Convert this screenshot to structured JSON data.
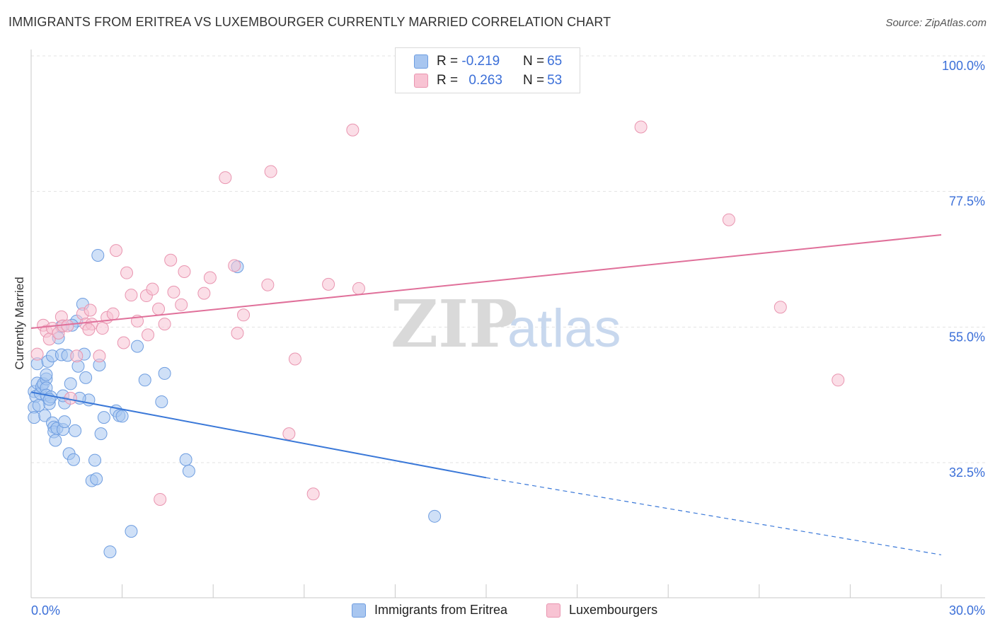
{
  "header": {
    "title": "IMMIGRANTS FROM ERITREA VS LUXEMBOURGER CURRENTLY MARRIED CORRELATION CHART",
    "source": "Source: ZipAtlas.com"
  },
  "watermark": {
    "zip": "ZIP",
    "atlas": "atlas"
  },
  "legend": {
    "rows": [
      {
        "r_label": "R = ",
        "r_value": "-0.219",
        "n_label": "N = ",
        "n_value": "65",
        "color": "#a8c6f0",
        "border": "#6e9de0"
      },
      {
        "r_label": "R = ",
        "r_value": "0.263",
        "n_label": "N = ",
        "n_value": "53",
        "color": "#f8c3d3",
        "border": "#e995b0"
      }
    ]
  },
  "bottom_legend": [
    {
      "label": "Immigrants from Eritrea",
      "color": "#a8c6f0",
      "border": "#6e9de0"
    },
    {
      "label": "Luxembourgers",
      "color": "#f8c3d3",
      "border": "#e995b0"
    }
  ],
  "chart_data": {
    "type": "scatter",
    "ylabel": "Currently Married",
    "xlim": [
      0,
      30
    ],
    "ylim": [
      12,
      100
    ],
    "x_tick_labels": [
      "0.0%",
      "30.0%"
    ],
    "y_ticks": [
      32.5,
      55.0,
      77.5,
      100.0
    ],
    "y_tick_labels": [
      "32.5%",
      "55.0%",
      "77.5%",
      "100.0%"
    ],
    "grid": true,
    "colors": {
      "blue": "#3a78d8",
      "pink": "#e0709a",
      "axis_text": "#3b6fd8"
    },
    "series": [
      {
        "name": "Immigrants from Eritrea",
        "color": "#6e9de0",
        "fill": "#a8c6f0",
        "points": [
          [
            0.1,
            44.3
          ],
          [
            0.1,
            41.7
          ],
          [
            0.1,
            40.0
          ],
          [
            0.15,
            43.5
          ],
          [
            0.2,
            45.7
          ],
          [
            0.2,
            48.9
          ],
          [
            0.3,
            44.0
          ],
          [
            0.35,
            45.1
          ],
          [
            0.4,
            45.6
          ],
          [
            0.45,
            40.3
          ],
          [
            0.5,
            46.4
          ],
          [
            0.5,
            44.9
          ],
          [
            0.5,
            43.7
          ],
          [
            0.5,
            47.1
          ],
          [
            0.55,
            49.3
          ],
          [
            0.6,
            42.3
          ],
          [
            0.65,
            43.4
          ],
          [
            0.7,
            39.1
          ],
          [
            0.7,
            50.2
          ],
          [
            0.75,
            38.4
          ],
          [
            0.75,
            37.6
          ],
          [
            0.8,
            36.2
          ],
          [
            0.85,
            38.2
          ],
          [
            0.9,
            53.2
          ],
          [
            1.0,
            55.1
          ],
          [
            1.0,
            50.4
          ],
          [
            1.1,
            42.4
          ],
          [
            1.05,
            43.6
          ],
          [
            1.05,
            38.0
          ],
          [
            1.1,
            39.3
          ],
          [
            1.2,
            50.3
          ],
          [
            1.25,
            34.0
          ],
          [
            1.3,
            45.6
          ],
          [
            1.4,
            33.0
          ],
          [
            1.45,
            37.8
          ],
          [
            1.5,
            56.0
          ],
          [
            1.55,
            48.5
          ],
          [
            1.7,
            58.8
          ],
          [
            1.75,
            50.5
          ],
          [
            1.8,
            46.6
          ],
          [
            1.9,
            42.9
          ],
          [
            2.0,
            29.5
          ],
          [
            2.1,
            32.9
          ],
          [
            2.2,
            66.9
          ],
          [
            2.25,
            48.7
          ],
          [
            2.3,
            37.3
          ],
          [
            2.4,
            40.0
          ],
          [
            2.6,
            17.7
          ],
          [
            2.8,
            41.1
          ],
          [
            2.9,
            40.3
          ],
          [
            3.3,
            21.1
          ],
          [
            3.5,
            51.8
          ],
          [
            3.75,
            46.2
          ],
          [
            4.3,
            42.6
          ],
          [
            4.4,
            47.3
          ],
          [
            5.1,
            33.0
          ],
          [
            5.2,
            31.1
          ],
          [
            6.8,
            65.0
          ],
          [
            13.3,
            23.6
          ],
          [
            3.0,
            40.2
          ],
          [
            1.35,
            55.3
          ],
          [
            0.25,
            42.0
          ],
          [
            2.15,
            29.8
          ],
          [
            0.6,
            43.0
          ],
          [
            1.6,
            43.2
          ]
        ]
      },
      {
        "name": "Luxembourgers",
        "color": "#e995b0",
        "fill": "#f8c3d3",
        "points": [
          [
            0.2,
            50.5
          ],
          [
            0.4,
            55.3
          ],
          [
            0.5,
            54.3
          ],
          [
            0.6,
            53.0
          ],
          [
            0.7,
            54.8
          ],
          [
            0.9,
            54.0
          ],
          [
            1.0,
            56.7
          ],
          [
            1.05,
            55.2
          ],
          [
            1.2,
            55.2
          ],
          [
            1.3,
            43.2
          ],
          [
            1.5,
            50.2
          ],
          [
            1.7,
            57.2
          ],
          [
            1.8,
            55.5
          ],
          [
            1.95,
            57.8
          ],
          [
            2.0,
            55.5
          ],
          [
            2.25,
            50.2
          ],
          [
            2.35,
            54.8
          ],
          [
            2.5,
            56.6
          ],
          [
            2.7,
            57.2
          ],
          [
            2.8,
            67.7
          ],
          [
            3.05,
            52.4
          ],
          [
            3.15,
            64.0
          ],
          [
            3.3,
            60.3
          ],
          [
            3.5,
            56.0
          ],
          [
            3.8,
            60.2
          ],
          [
            3.85,
            53.7
          ],
          [
            4.0,
            61.3
          ],
          [
            4.2,
            58.0
          ],
          [
            4.25,
            26.4
          ],
          [
            4.4,
            55.5
          ],
          [
            4.6,
            66.1
          ],
          [
            4.7,
            60.8
          ],
          [
            4.95,
            58.7
          ],
          [
            5.05,
            64.2
          ],
          [
            5.7,
            60.6
          ],
          [
            5.9,
            63.2
          ],
          [
            6.4,
            79.8
          ],
          [
            6.7,
            65.2
          ],
          [
            6.8,
            54.0
          ],
          [
            7.0,
            57.0
          ],
          [
            7.8,
            62.0
          ],
          [
            7.9,
            80.8
          ],
          [
            8.5,
            37.3
          ],
          [
            8.7,
            49.7
          ],
          [
            9.3,
            27.3
          ],
          [
            9.8,
            62.1
          ],
          [
            10.6,
            87.7
          ],
          [
            10.8,
            61.4
          ],
          [
            20.1,
            88.2
          ],
          [
            23.0,
            72.8
          ],
          [
            24.7,
            58.3
          ],
          [
            26.6,
            46.2
          ],
          [
            1.9,
            54.6
          ]
        ]
      }
    ],
    "trend_lines": [
      {
        "series": "Immigrants from Eritrea",
        "solid": [
          [
            0,
            44.2
          ],
          [
            15,
            30.0
          ]
        ],
        "dashed": [
          [
            15,
            30.0
          ],
          [
            30,
            17.2
          ]
        ]
      },
      {
        "series": "Luxembourgers",
        "solid": [
          [
            0,
            54.8
          ],
          [
            30,
            70.3
          ]
        ]
      }
    ]
  }
}
